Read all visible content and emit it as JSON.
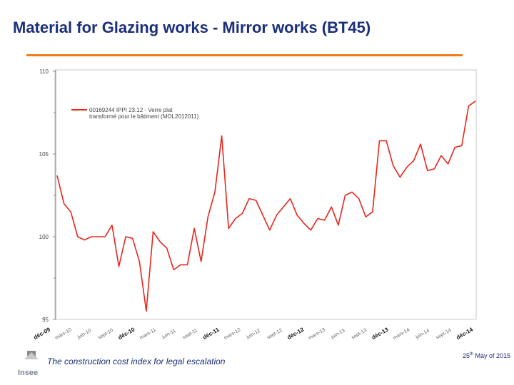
{
  "slide": {
    "title": "Material for Glazing works - Mirror works (BT45)",
    "footer_text": "The construction cost index for legal escalation",
    "date_day": "25",
    "date_suffix": "th",
    "date_rest": "May of 2015",
    "logo_text": "Insee"
  },
  "colors": {
    "title": "#1b2f7a",
    "rule": "#f07c1e",
    "series": "#e8261c",
    "axis": "#555555"
  },
  "chart_data": {
    "type": "line",
    "ylim": [
      95,
      110
    ],
    "yticks": [
      "95",
      "100",
      "105",
      "110"
    ],
    "ytick_values": [
      95,
      100,
      105,
      110
    ],
    "xticks": [
      "déc-09",
      "mars-10",
      "juin-10",
      "sept-10",
      "déc-10",
      "mars-11",
      "juin-11",
      "sept-11",
      "déc-11",
      "mars-12",
      "juin-12",
      "sept-12",
      "déc-12",
      "mars-13",
      "juin-13",
      "sept-13",
      "déc-13",
      "mars-14",
      "juin-14",
      "sept-14",
      "déc-14"
    ],
    "xtick_bold": [
      true,
      false,
      false,
      false,
      true,
      false,
      false,
      false,
      true,
      false,
      false,
      false,
      true,
      false,
      false,
      false,
      true,
      false,
      false,
      false,
      true
    ],
    "series": [
      {
        "name": "00169244 IPPI 23.12 - Verre plat transformé pour le bâtiment (MOL2012011)",
        "values": [
          103.7,
          102,
          101.5,
          100,
          99.8,
          100,
          100,
          100,
          100.7,
          98.2,
          100,
          99.9,
          98.5,
          95.5,
          100.3,
          99.7,
          99.3,
          98,
          98.3,
          98.3,
          100.5,
          98.5,
          101.2,
          102.7,
          106.1,
          100.5,
          101.1,
          101.4,
          102.3,
          102.2,
          101.3,
          100.4,
          101.3,
          101.8,
          102.3,
          101.3,
          100.8,
          100.4,
          101.1,
          101.0,
          101.8,
          100.7,
          102.5,
          102.7,
          102.3,
          101.2,
          101.5,
          105.8,
          105.8,
          104.3,
          103.6,
          104.2,
          104.6,
          105.6,
          104,
          104.1,
          104.9,
          104.4,
          105.4,
          105.5,
          107.9,
          108.2
        ]
      }
    ]
  }
}
